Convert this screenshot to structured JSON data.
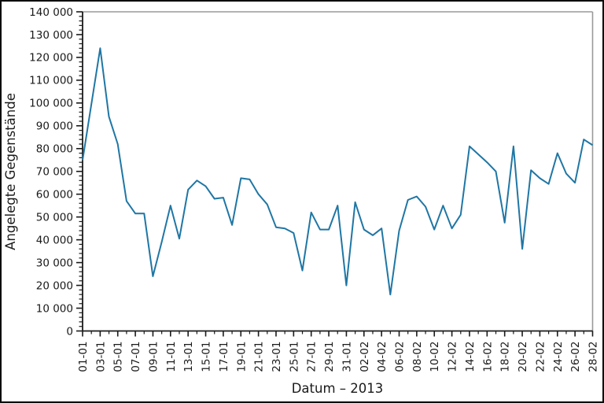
{
  "figure": {
    "background": "#ffffff",
    "border_color": "#0a0a0a"
  },
  "chart_data": {
    "type": "line",
    "title": "",
    "xlabel": "Datum – 2013",
    "ylabel": "Angelegte Gegenstände",
    "legend": "none",
    "grid": "off",
    "ylim": [
      0,
      140000
    ],
    "y_major_step": 10000,
    "y_minor_step": 2000,
    "x_major_every_days": 2,
    "x_minor_every_days": 1,
    "line_color": "#1f76a4",
    "axis_color": "#1a1a1a",
    "secondary_spine_color": "#9a9a9a",
    "y_tick_labels": [
      "0",
      "10 000",
      "20 000",
      "30 000",
      "40 000",
      "50 000",
      "60 000",
      "70 000",
      "80 000",
      "90 000",
      "100 000",
      "110 000",
      "120 000",
      "130 000",
      "140 000"
    ],
    "x_tick_labels": [
      "01-01",
      "03-01",
      "05-01",
      "07-01",
      "09-01",
      "11-01",
      "13-01",
      "15-01",
      "17-01",
      "19-01",
      "21-01",
      "23-01",
      "25-01",
      "27-01",
      "29-01",
      "31-01",
      "02-02",
      "04-02",
      "06-02",
      "08-02",
      "10-02",
      "12-02",
      "14-02",
      "16-02",
      "18-02",
      "20-02",
      "22-02",
      "24-02",
      "26-02",
      "28-02"
    ],
    "dates": [
      "01-01",
      "02-01",
      "03-01",
      "04-01",
      "05-01",
      "06-01",
      "07-01",
      "08-01",
      "09-01",
      "10-01",
      "11-01",
      "12-01",
      "13-01",
      "14-01",
      "15-01",
      "16-01",
      "17-01",
      "18-01",
      "19-01",
      "20-01",
      "21-01",
      "22-01",
      "23-01",
      "24-01",
      "25-01",
      "26-01",
      "27-01",
      "28-01",
      "29-01",
      "30-01",
      "31-01",
      "01-02",
      "02-02",
      "03-02",
      "04-02",
      "05-02",
      "06-02",
      "07-02",
      "08-02",
      "09-02",
      "10-02",
      "11-02",
      "12-02",
      "13-02",
      "14-02",
      "15-02",
      "16-02",
      "17-02",
      "18-02",
      "19-02",
      "20-02",
      "21-02",
      "22-02",
      "23-02",
      "24-02",
      "25-02",
      "26-02",
      "27-02",
      "28-02"
    ],
    "values": [
      75000,
      99500,
      124000,
      94000,
      82000,
      57000,
      51500,
      51500,
      24000,
      39000,
      55000,
      40500,
      62000,
      66000,
      63500,
      58000,
      58500,
      46500,
      67000,
      66500,
      60000,
      55500,
      45500,
      45000,
      43000,
      26500,
      52000,
      44500,
      44500,
      55000,
      20000,
      56500,
      44500,
      42000,
      45000,
      16000,
      44000,
      57500,
      59000,
      54500,
      44500,
      55000,
      45000,
      51000,
      81000,
      77500,
      74000,
      70000,
      47500,
      81000,
      36000,
      70500,
      67000,
      64500,
      78000,
      69000,
      65000,
      84000,
      81500
    ]
  }
}
